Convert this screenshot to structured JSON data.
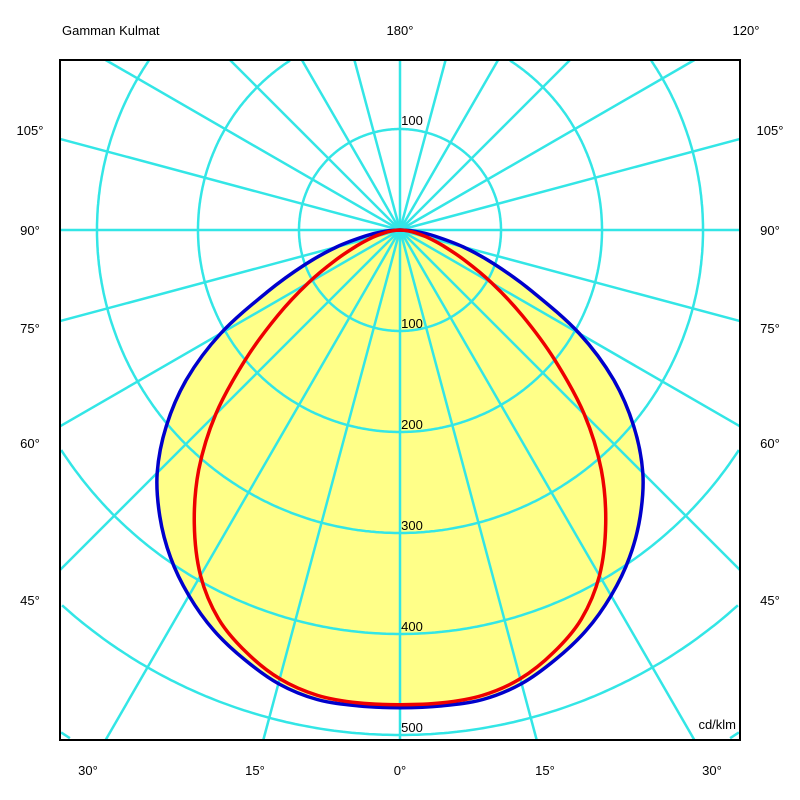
{
  "chart_data": {
    "type": "polar",
    "title": "Gamman Kulmat",
    "unit_label": "cd/klm",
    "radial_ticks": [
      100,
      200,
      300,
      400,
      500
    ],
    "upper_radial_tick": "100",
    "angle_labels": {
      "top": [
        "180°",
        "120°"
      ],
      "left": [
        "105°",
        "90°",
        "75°",
        "60°",
        "45°"
      ],
      "right": [
        "105°",
        "90°",
        "75°",
        "60°",
        "45°"
      ],
      "bottom": [
        "30°",
        "15°",
        "0°",
        "15°",
        "30°"
      ]
    },
    "angle_grid_step_deg": 15,
    "colors": {
      "grid": "#33e6e6",
      "fill": "#ffff88",
      "series1": "#0000cc",
      "series2": "#ee0000"
    },
    "angles": [
      0,
      5,
      10,
      15,
      20,
      25,
      30,
      35,
      40,
      45,
      50,
      55,
      60,
      65,
      70,
      75,
      80,
      85,
      90
    ],
    "series": [
      {
        "color": "#0000cc",
        "values": [
          473,
          473,
          472,
          465,
          452,
          437,
          418,
          396,
          370,
          340,
          302,
          258,
          205,
          145,
          100,
          65,
          35,
          15,
          0
        ]
      },
      {
        "color": "#ee0000",
        "values": [
          470,
          470,
          468,
          460,
          445,
          425,
          395,
          355,
          310,
          258,
          200,
          148,
          105,
          70,
          45,
          28,
          15,
          6,
          0
        ]
      }
    ]
  }
}
